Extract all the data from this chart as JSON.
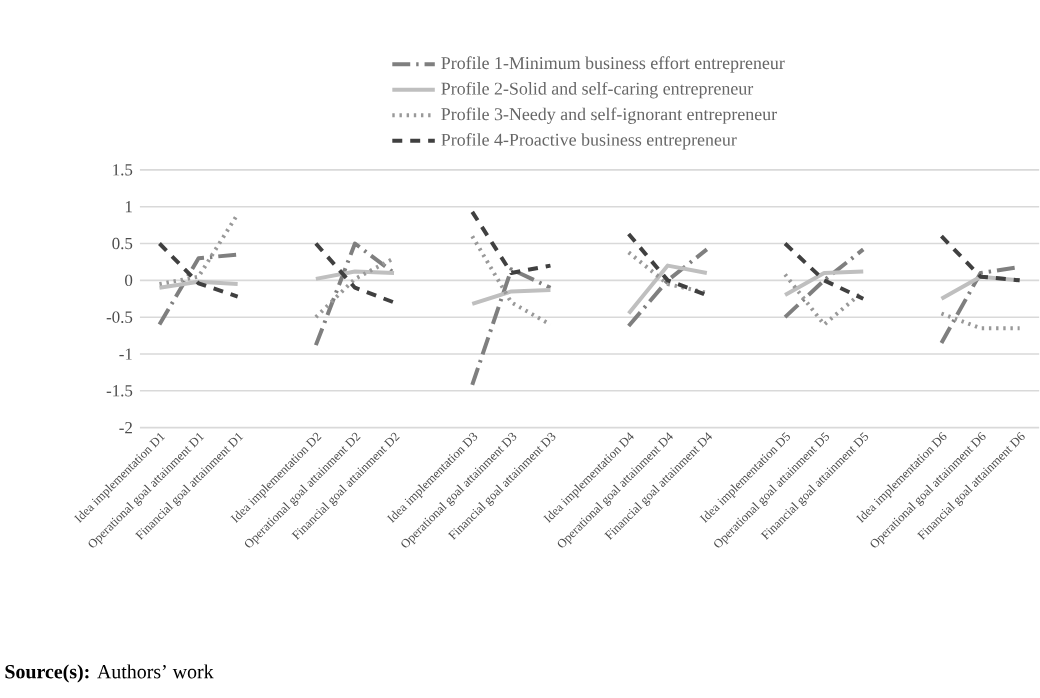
{
  "chart_data": {
    "type": "line",
    "categories": [
      "Idea implementation D1",
      "Operational goal attainment D1",
      "Financial goal attainment D1",
      null,
      "Idea implementation D2",
      "Operational goal attainment D2",
      "Financial goal attainment D2",
      null,
      "Idea implementation D3",
      "Operational goal attainment D3",
      "Financial goal attainment D3",
      null,
      "Idea implementation D4",
      "Operational goal attainment D4",
      "Financial goal attainment D4",
      null,
      "Idea implementation D5",
      "Operational goal attainment D5",
      "Financial goal attainment D5",
      null,
      "Idea implementation D6",
      "Operational goal attainment D6",
      "Financial goal attainment D6"
    ],
    "series": [
      {
        "name": "Profile 1-Minimum business effort entrepreneur",
        "color": "#7f7f7f",
        "line_style": "dashdot",
        "values": [
          -0.6,
          0.3,
          0.35,
          null,
          -0.88,
          0.5,
          0.1,
          null,
          -1.42,
          0.15,
          -0.1,
          null,
          -0.62,
          0.0,
          0.42,
          null,
          -0.5,
          0.0,
          0.42,
          null,
          -0.85,
          0.1,
          0.18
        ]
      },
      {
        "name": "Profile 2-Solid and self-caring entrepreneur",
        "color": "#bfbfbf",
        "line_style": "solid",
        "values": [
          -0.1,
          -0.02,
          -0.05,
          null,
          0.02,
          0.12,
          0.1,
          null,
          -0.32,
          -0.15,
          -0.13,
          null,
          -0.45,
          0.2,
          0.1,
          null,
          -0.2,
          0.1,
          0.12,
          null,
          -0.25,
          0.05,
          0.0
        ]
      },
      {
        "name": "Profile 3-Needy and self-ignorant entrepreneur",
        "color": "#999999",
        "line_style": "dotted",
        "values": [
          -0.05,
          0.05,
          0.9,
          null,
          -0.5,
          0.02,
          0.3,
          null,
          0.6,
          -0.3,
          -0.6,
          null,
          0.38,
          -0.05,
          -0.17,
          null,
          0.08,
          -0.6,
          -0.15,
          null,
          -0.45,
          -0.65,
          -0.65
        ]
      },
      {
        "name": "Profile 4-Proactive business entrepreneur",
        "color": "#404040",
        "line_style": "dashed",
        "values": [
          0.5,
          -0.04,
          -0.22,
          null,
          0.5,
          -0.1,
          -0.3,
          null,
          0.93,
          0.1,
          0.2,
          null,
          0.63,
          0.0,
          -0.2,
          null,
          0.5,
          0.0,
          -0.25,
          null,
          0.6,
          0.05,
          0.0
        ]
      }
    ],
    "ylim": [
      -2,
      1.5
    ],
    "yticks": [
      -2,
      -1.5,
      -1,
      -0.5,
      0,
      0.5,
      1,
      1.5
    ],
    "grid": "y",
    "legend": "top",
    "annotations": [
      "**Source(s):** Authors’ work"
    ]
  }
}
